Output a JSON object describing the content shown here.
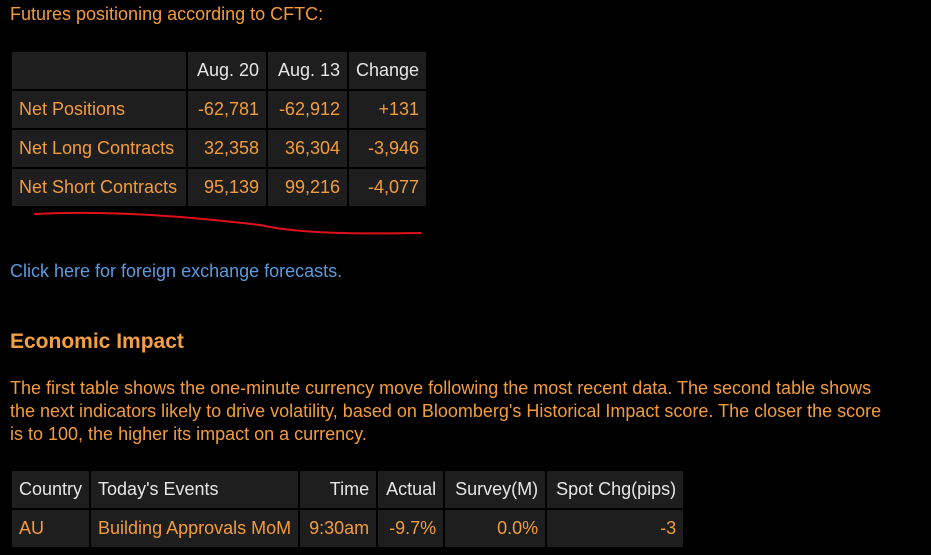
{
  "intro": "Futures positioning according to CFTC:",
  "cftc_table": {
    "header": [
      "Aug. 20",
      "Aug. 13",
      "Change"
    ],
    "rows": [
      [
        "Net Positions",
        "-62,781",
        "-62,912",
        "+131"
      ],
      [
        "Net Long Contracts",
        "32,358",
        "36,304",
        "-3,946"
      ],
      [
        "Net Short Contracts",
        "95,139",
        "99,216",
        "-4,077"
      ]
    ]
  },
  "link": "Click here for foreign exchange forecasts.",
  "section_title": "Economic Impact",
  "paragraph_lines": [
    "The first table shows the one-minute currency move following the most recent data. The second table shows",
    "the next indicators likely to drive volatility, based on Bloomberg's Historical Impact score. The closer the score",
    "is to 100, the higher its impact on a currency."
  ],
  "events_table": {
    "header": [
      "Country",
      "Today's Events",
      "Time",
      "Actual",
      "Survey(M)",
      "Spot Chg(pips)"
    ],
    "rows": [
      [
        "AU",
        "Building Approvals MoM",
        "9:30am",
        "-9.7%",
        "0.0%",
        "-3"
      ]
    ]
  }
}
